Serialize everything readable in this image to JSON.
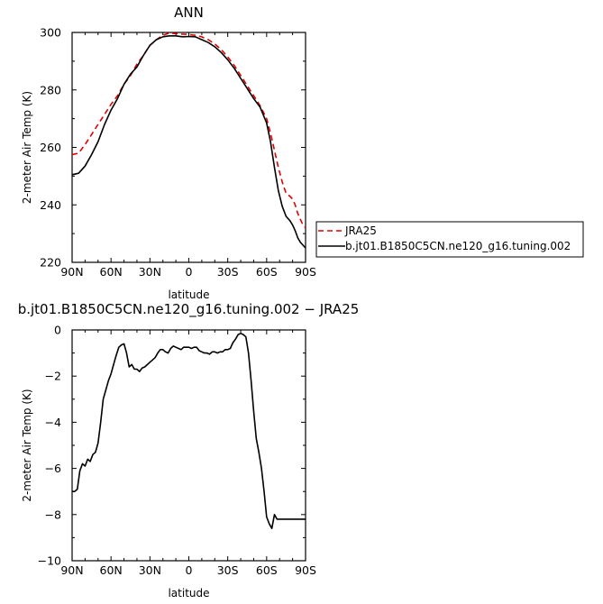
{
  "chart_data": [
    {
      "type": "line",
      "title": "ANN",
      "xlabel": "latitude",
      "ylabel": "2-meter Air Temp (K)",
      "xlim": [
        90,
        -90
      ],
      "ylim": [
        220,
        300
      ],
      "xticks": [
        "90N",
        "60N",
        "30N",
        "0",
        "30S",
        "60S",
        "90S"
      ],
      "yticks": [
        "220",
        "240",
        "260",
        "280",
        "300"
      ],
      "legend_position": "right",
      "series": [
        {
          "name": "JRA25",
          "color": "#e00000",
          "dash": "dashed",
          "x": [
            90,
            85,
            80,
            75,
            70,
            65,
            60,
            55,
            50,
            45,
            40,
            35,
            30,
            25,
            20,
            15,
            10,
            5,
            0,
            -5,
            -10,
            -15,
            -20,
            -25,
            -30,
            -35,
            -40,
            -45,
            -50,
            -55,
            -60,
            -63,
            -66,
            -69,
            -72,
            -75,
            -78,
            -80,
            -82,
            -84,
            -86,
            -88,
            -90
          ],
          "y": [
            257.5,
            258,
            261,
            264.5,
            268,
            271.5,
            275,
            278,
            282,
            285,
            289,
            292,
            295.5,
            297.5,
            299,
            299.8,
            299.6,
            299.4,
            299.3,
            299,
            298.5,
            297.5,
            296,
            294,
            291.5,
            288.5,
            285,
            281.5,
            278,
            274.5,
            270,
            265,
            259,
            253,
            248,
            244,
            243,
            242,
            240,
            237,
            235,
            233,
            232
          ]
        },
        {
          "name": "b.jt01.B1850C5CN.ne120_g16.tuning.002",
          "color": "#000000",
          "dash": "solid",
          "x": [
            90,
            85,
            80,
            75,
            70,
            65,
            60,
            55,
            50,
            45,
            40,
            35,
            30,
            25,
            20,
            15,
            10,
            5,
            0,
            -5,
            -10,
            -15,
            -20,
            -25,
            -30,
            -35,
            -40,
            -45,
            -50,
            -55,
            -60,
            -63,
            -66,
            -69,
            -72,
            -75,
            -78,
            -80,
            -82,
            -84,
            -86,
            -88,
            -90
          ],
          "y": [
            250.5,
            251,
            253.5,
            257.5,
            262,
            268,
            273,
            277,
            282,
            285.5,
            288,
            292,
            295.5,
            297.5,
            298.5,
            298.8,
            298.8,
            298.5,
            298.6,
            298.5,
            297.5,
            296.5,
            295,
            293,
            290.5,
            287.5,
            284,
            280.5,
            277,
            274,
            268.5,
            262,
            253,
            245,
            239.5,
            236,
            234.5,
            233,
            231,
            228.5,
            227,
            226,
            225
          ]
        }
      ]
    },
    {
      "type": "line",
      "title": "b.jt01.B1850C5CN.ne120_g16.tuning.002 − JRA25",
      "xlabel": "latitude",
      "ylabel": "2-meter Air Temp (K)",
      "xlim": [
        90,
        -90
      ],
      "ylim": [
        -10,
        0
      ],
      "xticks": [
        "90N",
        "60N",
        "30N",
        "0",
        "30S",
        "60S",
        "90S"
      ],
      "yticks": [
        "−10",
        "−8",
        "−6",
        "−4",
        "−2",
        "0"
      ],
      "series": [
        {
          "color": "#000000",
          "dash": "solid",
          "x": [
            90,
            88,
            86,
            84,
            82,
            80,
            78,
            76,
            74,
            72,
            70,
            68,
            66,
            64,
            62,
            60,
            58,
            56,
            54,
            52,
            50,
            48,
            46,
            44,
            42,
            40,
            38,
            36,
            34,
            32,
            30,
            28,
            26,
            24,
            22,
            20,
            18,
            16,
            14,
            12,
            10,
            8,
            6,
            4,
            2,
            0,
            -2,
            -4,
            -6,
            -8,
            -10,
            -12,
            -14,
            -16,
            -18,
            -20,
            -22,
            -24,
            -26,
            -28,
            -30,
            -32,
            -34,
            -36,
            -38,
            -40,
            -42,
            -44,
            -46,
            -48,
            -50,
            -52,
            -54,
            -56,
            -58,
            -60,
            -62,
            -64,
            -66,
            -68,
            -70,
            -72,
            -74,
            -76,
            -78,
            -80,
            -82,
            -84,
            -86,
            -88,
            -90
          ],
          "y": [
            -7.0,
            -7.0,
            -6.9,
            -6.1,
            -5.8,
            -5.9,
            -5.6,
            -5.7,
            -5.4,
            -5.3,
            -4.9,
            -4.0,
            -3.0,
            -2.6,
            -2.2,
            -1.9,
            -1.5,
            -1.1,
            -0.75,
            -0.65,
            -0.6,
            -1.0,
            -1.6,
            -1.5,
            -1.7,
            -1.7,
            -1.8,
            -1.65,
            -1.6,
            -1.5,
            -1.4,
            -1.3,
            -1.2,
            -1.0,
            -0.85,
            -0.85,
            -0.95,
            -1.0,
            -0.8,
            -0.7,
            -0.75,
            -0.8,
            -0.85,
            -0.75,
            -0.75,
            -0.75,
            -0.8,
            -0.75,
            -0.75,
            -0.9,
            -0.95,
            -1.0,
            -1.0,
            -1.05,
            -0.95,
            -0.95,
            -1.0,
            -0.95,
            -0.95,
            -0.85,
            -0.85,
            -0.8,
            -0.55,
            -0.4,
            -0.2,
            -0.15,
            -0.2,
            -0.3,
            -1.0,
            -2.2,
            -3.5,
            -4.7,
            -5.3,
            -6.0,
            -7.0,
            -8.1,
            -8.4,
            -8.6,
            -8.0,
            -8.2,
            -8.2,
            -8.2,
            -8.2,
            -8.2,
            -8.2,
            -8.2,
            -8.2,
            -8.2,
            -8.2,
            -8.2,
            -8.2
          ]
        }
      ]
    }
  ],
  "legend": {
    "items": [
      {
        "label": "JRA25",
        "color": "#e00000",
        "dash": "dashed"
      },
      {
        "label": "b.jt01.B1850C5CN.ne120_g16.tuning.002",
        "color": "#000000",
        "dash": "solid"
      }
    ]
  }
}
